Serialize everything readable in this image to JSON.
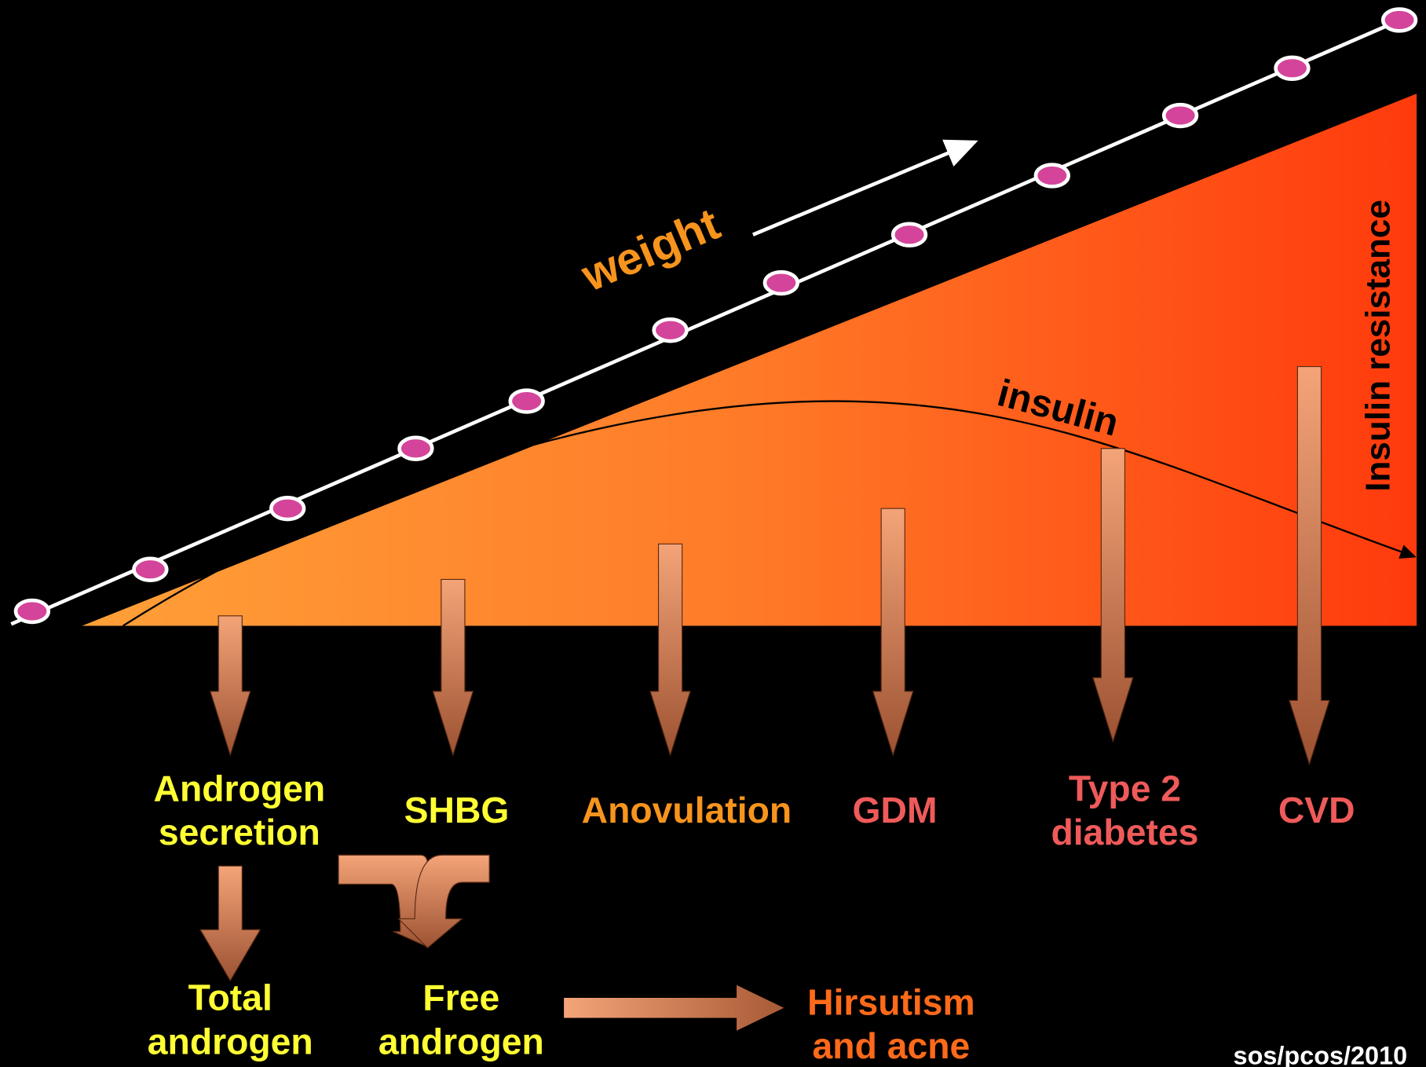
{
  "weight": "weight",
  "insulin": "insulin",
  "insulin_resistance": "Insulin resistance",
  "outcomes": [
    {
      "lines": [
        "Androgen",
        "secretion"
      ]
    },
    {
      "lines": [
        "SHBG"
      ]
    },
    {
      "lines": [
        "Anovulation"
      ]
    },
    {
      "lines": [
        "GDM"
      ]
    },
    {
      "lines": [
        "Type 2",
        "diabetes"
      ]
    },
    {
      "lines": [
        "CVD"
      ]
    }
  ],
  "downstream": [
    {
      "lines": [
        "Total",
        "androgen"
      ]
    },
    {
      "lines": [
        "Free",
        "androgen"
      ]
    },
    {
      "lines": [
        "Hirsutism",
        "and acne"
      ]
    }
  ],
  "footer": "sos/pcos/2010"
}
